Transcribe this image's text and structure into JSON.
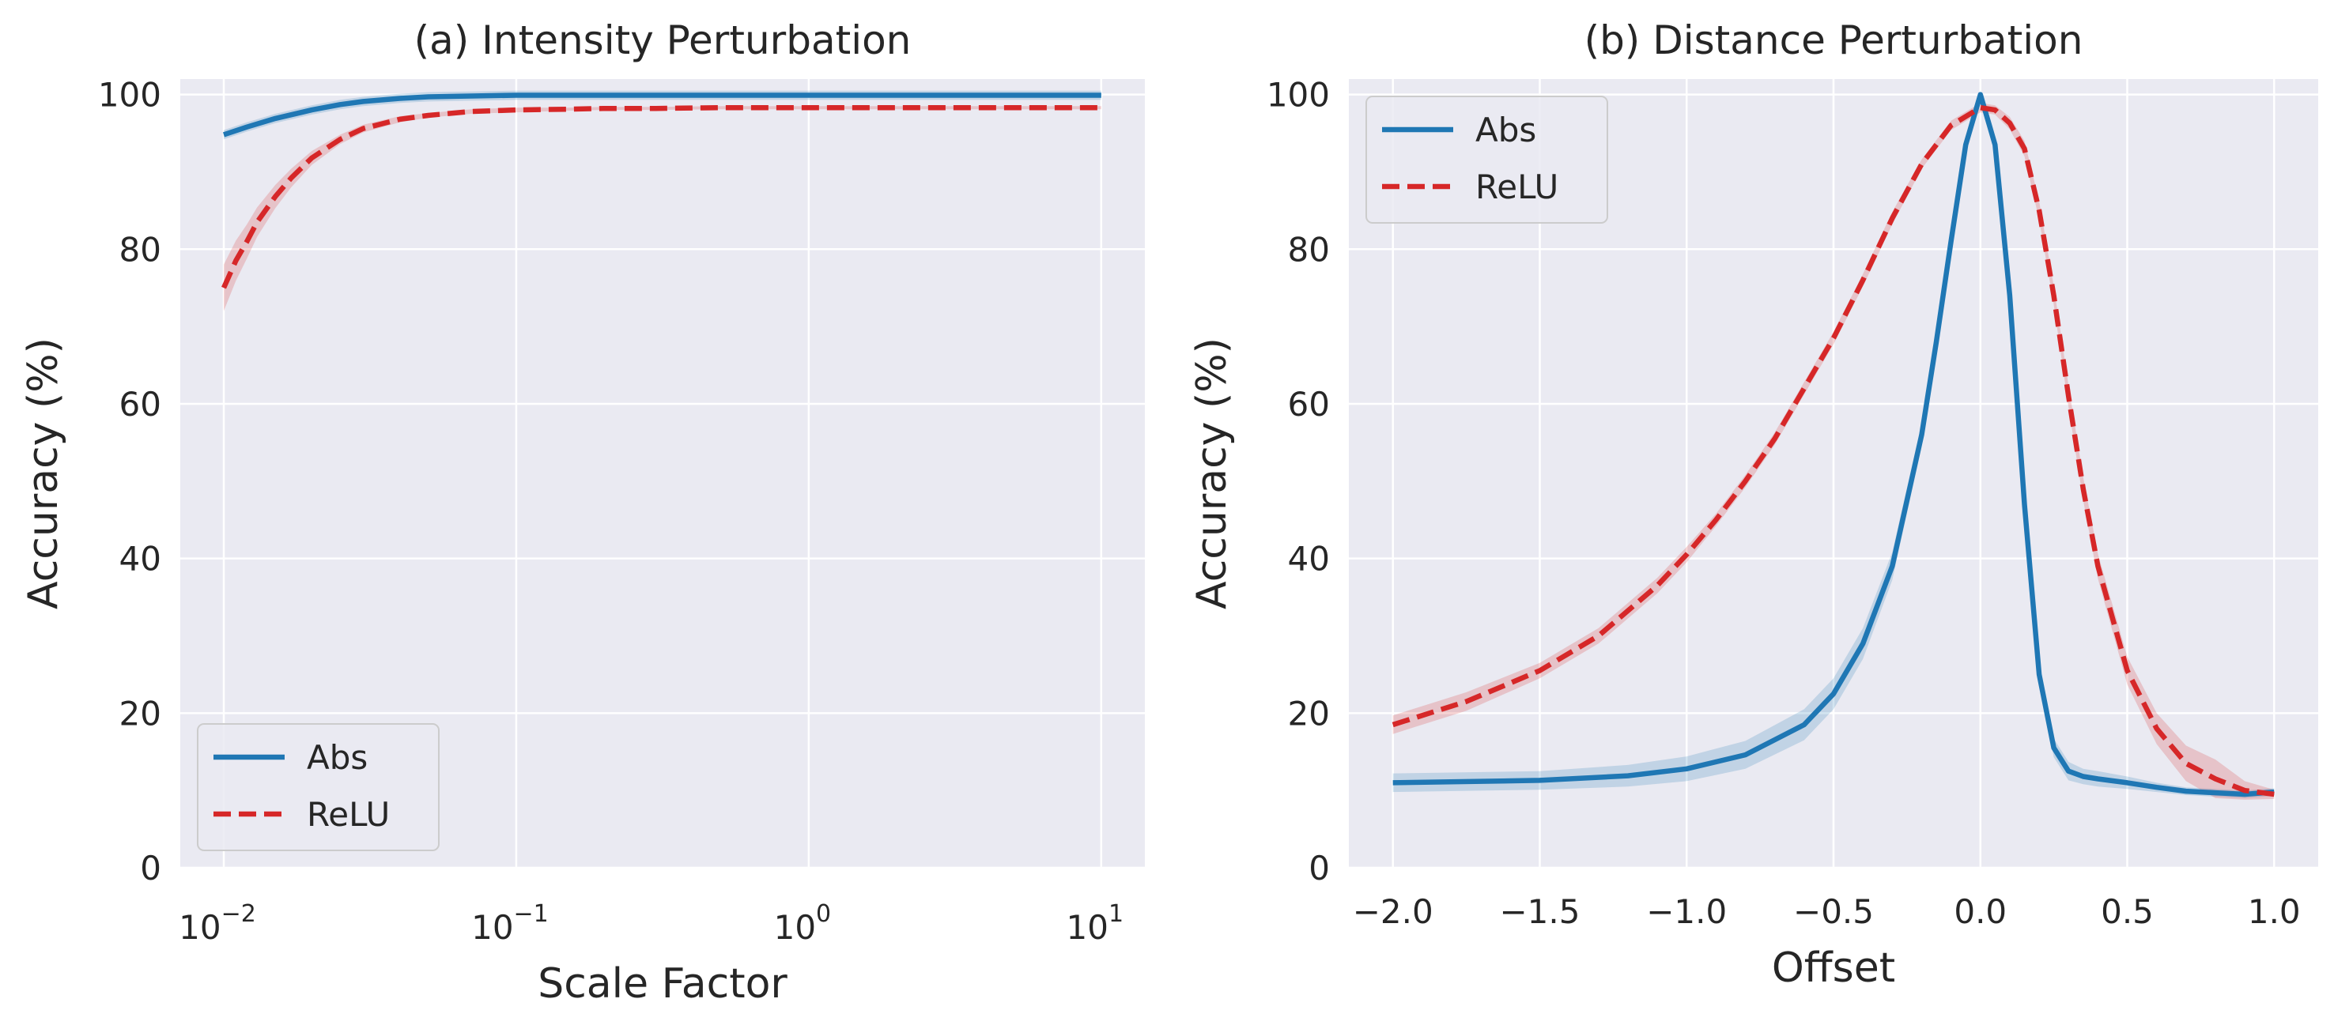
{
  "chart_data": [
    {
      "type": "line",
      "title": "(a) Intensity Perturbation",
      "xlabel": "Scale Factor",
      "ylabel": "Accuracy (%)",
      "xscale": "log",
      "xlim": [
        0.0071,
        14.1
      ],
      "ylim": [
        0,
        102
      ],
      "yticks": [
        0,
        20,
        40,
        60,
        80,
        100
      ],
      "xticks": [
        {
          "value": 0.01,
          "base": "10",
          "exp": "−2"
        },
        {
          "value": 0.1,
          "base": "10",
          "exp": "−1"
        },
        {
          "value": 1,
          "base": "10",
          "exp": "0"
        },
        {
          "value": 10,
          "base": "10",
          "exp": "1"
        }
      ],
      "grid": true,
      "legend": "lower-left",
      "series": [
        {
          "name": "Abs",
          "color": "#1f77b4",
          "style": "solid",
          "x": [
            0.01,
            0.012,
            0.015,
            0.02,
            0.025,
            0.03,
            0.04,
            0.05,
            0.07,
            0.1,
            0.2,
            0.5,
            1,
            2,
            5,
            10
          ],
          "y": [
            94.8,
            95.8,
            96.9,
            98.0,
            98.7,
            99.1,
            99.5,
            99.7,
            99.8,
            99.9,
            99.9,
            99.9,
            99.9,
            99.9,
            99.9,
            99.9
          ],
          "band": 0.6
        },
        {
          "name": "ReLU",
          "color": "#d62728",
          "style": "dashed",
          "x": [
            0.01,
            0.011,
            0.012,
            0.013,
            0.015,
            0.017,
            0.02,
            0.025,
            0.03,
            0.04,
            0.05,
            0.07,
            0.1,
            0.15,
            0.2,
            0.3,
            0.5,
            1,
            2,
            5,
            10
          ],
          "y": [
            75.0,
            78.5,
            81.0,
            83.5,
            86.8,
            89.2,
            91.8,
            94.2,
            95.6,
            96.8,
            97.3,
            97.8,
            98.0,
            98.1,
            98.2,
            98.2,
            98.3,
            98.3,
            98.3,
            98.3,
            98.3
          ],
          "band": [
            3.0,
            2.6,
            2.2,
            1.9,
            1.5,
            1.2,
            0.9,
            0.6,
            0.5,
            0.4,
            0.3,
            0.3,
            0.3,
            0.2,
            0.2,
            0.2,
            0.2,
            0.2,
            0.2,
            0.2,
            0.2
          ]
        }
      ]
    },
    {
      "type": "line",
      "title": "(b) Distance Perturbation",
      "xlabel": "Offset",
      "ylabel": "Accuracy (%)",
      "xscale": "linear",
      "xlim": [
        -2.15,
        1.15
      ],
      "ylim": [
        0,
        102
      ],
      "yticks": [
        0,
        20,
        40,
        60,
        80,
        100
      ],
      "xticks": [
        -2.0,
        -1.5,
        -1.0,
        -0.5,
        0.0,
        0.5,
        1.0
      ],
      "xtick_labels": [
        "−2.0",
        "−1.5",
        "−1.0",
        "−0.5",
        "0.0",
        "0.5",
        "1.0"
      ],
      "grid": true,
      "legend": "upper-left",
      "series": [
        {
          "name": "Abs",
          "color": "#1f77b4",
          "style": "solid",
          "x": [
            -2.0,
            -1.5,
            -1.2,
            -1.0,
            -0.8,
            -0.6,
            -0.5,
            -0.4,
            -0.3,
            -0.2,
            -0.15,
            -0.1,
            -0.05,
            0.0,
            0.05,
            0.1,
            0.15,
            0.2,
            0.25,
            0.3,
            0.35,
            0.4,
            0.5,
            0.6,
            0.7,
            0.8,
            0.9,
            1.0
          ],
          "y": [
            11.0,
            11.3,
            11.9,
            12.8,
            14.6,
            18.5,
            22.5,
            29.0,
            39.0,
            56.0,
            68.0,
            81.0,
            93.5,
            100.0,
            93.5,
            74.0,
            47.0,
            25.0,
            15.5,
            12.5,
            11.8,
            11.5,
            11.0,
            10.4,
            9.9,
            9.7,
            9.5,
            9.8
          ],
          "band": [
            1.2,
            1.2,
            1.4,
            1.6,
            1.8,
            2.0,
            2.0,
            2.0,
            1.8,
            1.5,
            1.2,
            1.0,
            0.5,
            0.3,
            0.5,
            1.0,
            1.2,
            1.2,
            1.2,
            1.2,
            1.0,
            1.0,
            0.8,
            0.6,
            0.5,
            0.5,
            0.5,
            0.5
          ]
        },
        {
          "name": "ReLU",
          "color": "#d62728",
          "style": "dashed",
          "x": [
            -2.0,
            -1.75,
            -1.5,
            -1.3,
            -1.1,
            -1.0,
            -0.9,
            -0.8,
            -0.7,
            -0.6,
            -0.5,
            -0.4,
            -0.3,
            -0.2,
            -0.1,
            0.0,
            0.05,
            0.1,
            0.15,
            0.2,
            0.25,
            0.3,
            0.35,
            0.4,
            0.5,
            0.6,
            0.7,
            0.8,
            0.9,
            1.0
          ],
          "y": [
            18.5,
            21.5,
            25.5,
            30.0,
            36.5,
            40.5,
            45.0,
            50.0,
            55.5,
            62.0,
            68.5,
            76.0,
            84.0,
            91.0,
            96.0,
            98.3,
            98.0,
            96.3,
            93.0,
            85.0,
            74.0,
            61.0,
            49.0,
            39.0,
            25.5,
            18.0,
            13.5,
            11.5,
            10.0,
            9.5
          ],
          "band": [
            1.2,
            1.2,
            1.0,
            1.0,
            1.0,
            1.0,
            0.8,
            0.8,
            0.8,
            0.8,
            0.8,
            0.8,
            0.8,
            0.6,
            0.6,
            0.6,
            0.6,
            0.8,
            1.0,
            1.2,
            1.2,
            1.4,
            1.5,
            1.6,
            1.8,
            2.0,
            2.3,
            2.5,
            1.2,
            0.6
          ]
        }
      ]
    }
  ]
}
